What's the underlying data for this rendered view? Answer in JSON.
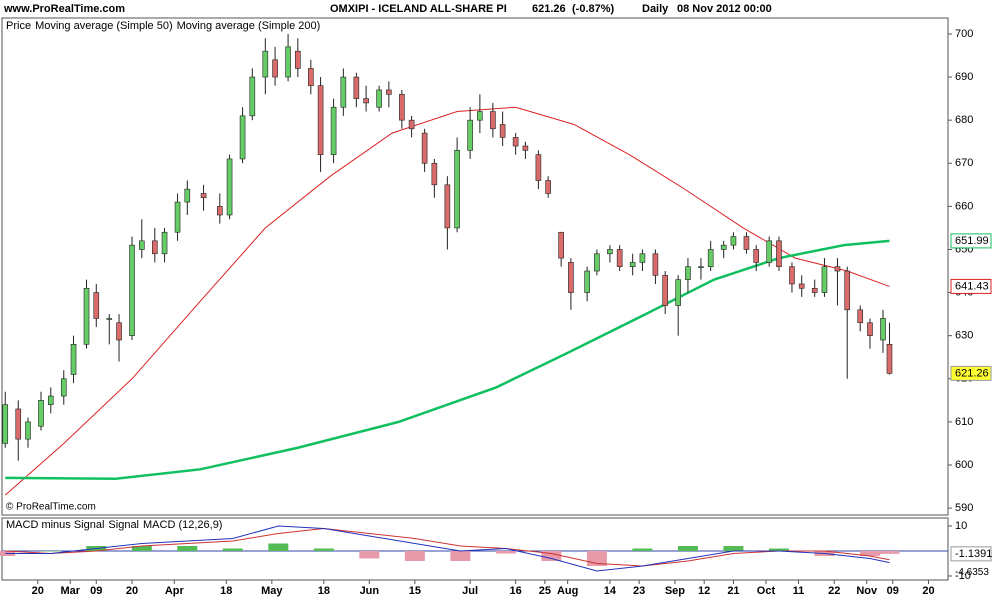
{
  "header": {
    "site": "www.ProRealTime.com",
    "instrument": "OMXIPI - ICELAND ALL-SHARE PI",
    "change": "(-0.87%)",
    "interval": "Daily",
    "datetime": "08 Nov 2012 00:00",
    "copyright": "© ProRealTime.com"
  },
  "chart_data": [
    {
      "type": "candlestick",
      "legend_label": "Price",
      "up_color": "#66cc66",
      "down_color": "#d96b6b",
      "last_box_color": "#ffff33",
      "xlim": [
        "2012-02-09",
        "2012-11-26"
      ],
      "xticks": [
        {
          "value": "2012-02-20",
          "label": "20"
        },
        {
          "value": "2012-03-01",
          "label": "Mar"
        },
        {
          "value": "2012-03-09",
          "label": "09"
        },
        {
          "value": "2012-03-20",
          "label": "20"
        },
        {
          "value": "2012-04-02",
          "label": "Apr"
        },
        {
          "value": "2012-04-18",
          "label": "18"
        },
        {
          "value": "2012-05-02",
          "label": "May"
        },
        {
          "value": "2012-05-18",
          "label": "18"
        },
        {
          "value": "2012-06-01",
          "label": "Jun"
        },
        {
          "value": "2012-06-15",
          "label": "15"
        },
        {
          "value": "2012-07-02",
          "label": "Jul"
        },
        {
          "value": "2012-07-16",
          "label": "16"
        },
        {
          "value": "2012-07-25",
          "label": "25"
        },
        {
          "value": "2012-08-01",
          "label": "Aug"
        },
        {
          "value": "2012-08-14",
          "label": "14"
        },
        {
          "value": "2012-08-23",
          "label": "23"
        },
        {
          "value": "2012-09-03",
          "label": "Sep"
        },
        {
          "value": "2012-09-12",
          "label": "12"
        },
        {
          "value": "2012-09-21",
          "label": "21"
        },
        {
          "value": "2012-10-01",
          "label": "Oct"
        },
        {
          "value": "2012-10-11",
          "label": "11"
        },
        {
          "value": "2012-10-22",
          "label": "22"
        },
        {
          "value": "2012-11-01",
          "label": "Nov"
        },
        {
          "value": "2012-11-09",
          "label": "09"
        },
        {
          "value": "2012-11-20",
          "label": "20"
        }
      ],
      "ylim": [
        588.4,
        703.7
      ],
      "yticks": [
        590,
        600,
        610,
        620,
        630,
        640,
        650,
        660,
        670,
        680,
        690,
        700
      ],
      "x": [
        "2012-02-10",
        "2012-02-14",
        "2012-02-17",
        "2012-02-21",
        "2012-02-24",
        "2012-02-28",
        "2012-03-02",
        "2012-03-06",
        "2012-03-09",
        "2012-03-13",
        "2012-03-16",
        "2012-03-20",
        "2012-03-23",
        "2012-03-27",
        "2012-03-30",
        "2012-04-03",
        "2012-04-06",
        "2012-04-11",
        "2012-04-16",
        "2012-04-19",
        "2012-04-23",
        "2012-04-26",
        "2012-04-30",
        "2012-05-03",
        "2012-05-07",
        "2012-05-10",
        "2012-05-14",
        "2012-05-17",
        "2012-05-21",
        "2012-05-24",
        "2012-05-28",
        "2012-05-31",
        "2012-06-04",
        "2012-06-07",
        "2012-06-11",
        "2012-06-14",
        "2012-06-18",
        "2012-06-21",
        "2012-06-25",
        "2012-06-28",
        "2012-07-02",
        "2012-07-05",
        "2012-07-09",
        "2012-07-12",
        "2012-07-16",
        "2012-07-19",
        "2012-07-23",
        "2012-07-26",
        "2012-07-30",
        "2012-08-02",
        "2012-08-07",
        "2012-08-10",
        "2012-08-14",
        "2012-08-17",
        "2012-08-21",
        "2012-08-24",
        "2012-08-28",
        "2012-08-31",
        "2012-09-04",
        "2012-09-07",
        "2012-09-11",
        "2012-09-14",
        "2012-09-18",
        "2012-09-21",
        "2012-09-25",
        "2012-09-28",
        "2012-10-02",
        "2012-10-05",
        "2012-10-09",
        "2012-10-12",
        "2012-10-16",
        "2012-10-19",
        "2012-10-23",
        "2012-10-26",
        "2012-10-30",
        "2012-11-02",
        "2012-11-06",
        "2012-11-08"
      ],
      "open": [
        605,
        613,
        606,
        609,
        614,
        616,
        621,
        628,
        640,
        634,
        633,
        630,
        650,
        652,
        649,
        654,
        661,
        663,
        660,
        658,
        671,
        681,
        690,
        694,
        690,
        696,
        692,
        688,
        672,
        683,
        690,
        685,
        683,
        687,
        686,
        680,
        677,
        670,
        665,
        655,
        673,
        680,
        682,
        679,
        676,
        674,
        672,
        666,
        654,
        647,
        640,
        645,
        649,
        650,
        646,
        647,
        649,
        644,
        637,
        643,
        646,
        646,
        650,
        651,
        653,
        650,
        647,
        652,
        646,
        642,
        641,
        640,
        646,
        645,
        636,
        633,
        629,
        628
      ],
      "high": [
        617,
        615,
        611,
        617,
        618,
        622,
        630,
        643,
        642,
        635,
        635,
        653,
        657,
        655,
        655,
        663,
        666,
        665,
        663,
        672,
        683,
        692,
        699,
        697,
        700,
        699,
        694,
        690,
        685,
        692,
        691,
        688,
        688,
        689,
        687,
        681,
        678,
        671,
        667,
        676,
        683,
        686,
        684,
        682,
        677,
        675,
        673,
        667,
        654,
        648,
        646,
        650,
        651,
        651,
        649,
        650,
        650,
        645,
        644,
        648,
        648,
        652,
        652,
        654,
        654,
        651,
        653,
        653,
        647,
        644,
        643,
        648,
        648,
        646,
        637,
        634,
        636,
        633
      ],
      "low": [
        604,
        601,
        604,
        608,
        612,
        614,
        619,
        627,
        632,
        628,
        624,
        629,
        648,
        647,
        647,
        652,
        658,
        659,
        656,
        657,
        670,
        680,
        686,
        688,
        689,
        690,
        686,
        668,
        670,
        681,
        683,
        682,
        682,
        683,
        678,
        676,
        668,
        662,
        650,
        654,
        671,
        677,
        676,
        674,
        672,
        671,
        664,
        662,
        646,
        636,
        638,
        644,
        647,
        645,
        644,
        645,
        642,
        635,
        630,
        640,
        643,
        645,
        648,
        650,
        649,
        645,
        646,
        645,
        640,
        639,
        639,
        639,
        637,
        620,
        631,
        627,
        626,
        621
      ],
      "close": [
        614,
        606,
        610,
        615,
        616,
        620,
        628,
        641,
        634,
        634,
        629,
        651,
        652,
        649,
        654,
        661,
        664,
        662,
        658,
        671,
        681,
        690,
        696,
        690,
        697,
        692,
        688,
        672,
        683,
        690,
        685,
        684,
        687,
        686,
        680,
        678,
        670,
        665,
        655,
        673,
        680,
        682,
        678,
        676,
        674,
        673,
        666,
        663,
        648,
        640,
        645,
        649,
        650,
        646,
        647,
        649,
        644,
        637,
        643,
        646,
        646,
        650,
        651,
        653,
        650,
        647,
        652,
        646,
        642,
        641,
        640,
        646,
        645,
        636,
        633,
        630,
        634,
        621.26
      ],
      "overlays": [
        {
          "name": "Moving average (Simple 50)",
          "color": "#dd2222",
          "width": 1,
          "x": [
            "2012-02-10",
            "2012-02-28",
            "2012-03-20",
            "2012-04-10",
            "2012-04-30",
            "2012-05-20",
            "2012-06-08",
            "2012-06-28",
            "2012-07-16",
            "2012-08-03",
            "2012-08-20",
            "2012-09-06",
            "2012-09-24",
            "2012-10-10",
            "2012-10-26",
            "2012-11-08"
          ],
          "values": [
            593,
            605,
            620,
            638,
            655,
            667,
            677,
            682,
            683,
            679,
            672,
            664,
            655,
            648,
            645,
            641.43
          ]
        },
        {
          "name": "Moving average (Simple 200)",
          "color": "#10c060",
          "width": 2.5,
          "x": [
            "2012-02-10",
            "2012-03-15",
            "2012-04-10",
            "2012-05-10",
            "2012-06-10",
            "2012-07-10",
            "2012-08-01",
            "2012-08-25",
            "2012-09-15",
            "2012-10-05",
            "2012-10-25",
            "2012-11-08"
          ],
          "values": [
            597,
            596.8,
            599,
            604,
            610,
            618,
            626,
            635,
            643,
            648,
            651,
            651.99
          ]
        }
      ]
    },
    {
      "type": "macd",
      "ylim": [
        -11.6,
        13.2
      ],
      "yticks": [
        10,
        -10
      ],
      "zero_color": "#3344aa",
      "x": [
        "2012-02-10",
        "2012-02-24",
        "2012-03-09",
        "2012-03-23",
        "2012-04-06",
        "2012-04-20",
        "2012-05-04",
        "2012-05-18",
        "2012-06-01",
        "2012-06-15",
        "2012-06-29",
        "2012-07-13",
        "2012-07-27",
        "2012-08-10",
        "2012-08-24",
        "2012-09-07",
        "2012-09-21",
        "2012-10-05",
        "2012-10-19",
        "2012-11-02",
        "2012-11-08"
      ],
      "series": [
        {
          "name": "MACD minus Signal",
          "kind": "bar",
          "color": "#d04848",
          "up_color": "#55bb55",
          "down_color": "#e89aa8",
          "values": [
            -2,
            0,
            2,
            2,
            2,
            1,
            3,
            1,
            -3,
            -4,
            -4,
            -1,
            -4,
            -6,
            1,
            2,
            2,
            1,
            -2,
            -2,
            -1.1391
          ]
        },
        {
          "name": "Signal",
          "kind": "line",
          "color": "#cc3333",
          "values": [
            0,
            -1,
            0,
            2,
            3,
            4,
            7,
            9,
            7,
            5,
            2,
            1,
            -1,
            -5,
            -6,
            -4,
            -1,
            0,
            0,
            -2,
            -3.5
          ]
        },
        {
          "name": "MACD (12,26,9)",
          "kind": "line",
          "color": "#2233bb",
          "values": [
            -1,
            -1,
            1,
            3,
            4,
            5,
            10,
            9,
            6,
            3,
            0,
            1,
            -3,
            -8,
            -6,
            -3,
            0,
            0,
            -1,
            -3,
            -4.6353
          ]
        }
      ]
    }
  ]
}
